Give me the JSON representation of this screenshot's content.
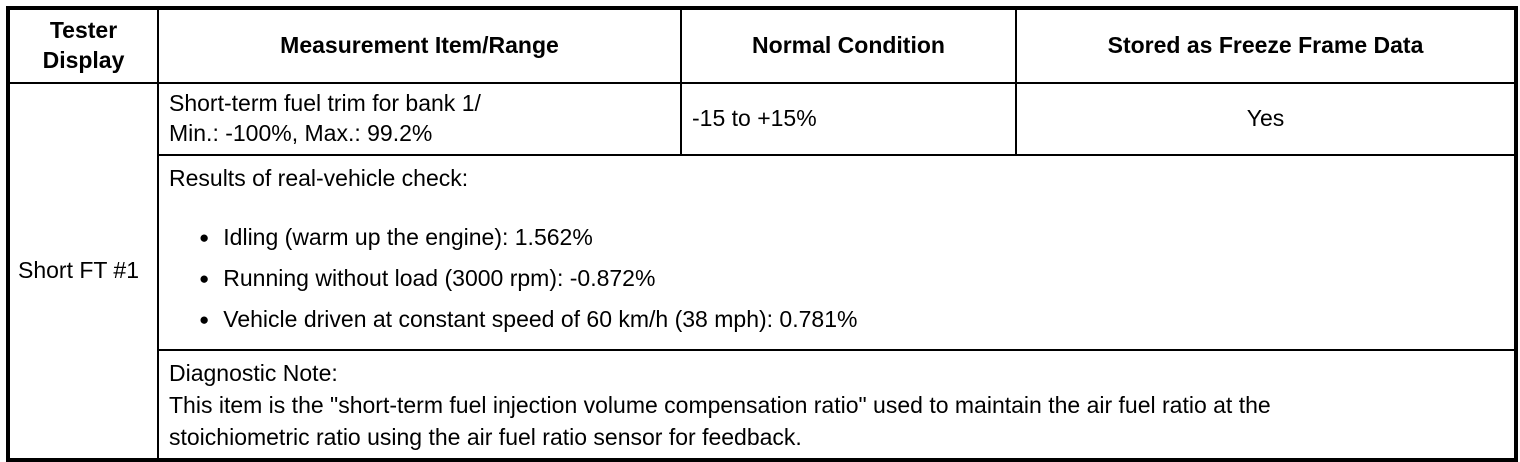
{
  "table": {
    "headers": [
      "Tester Display",
      "Measurement Item/Range",
      "Normal Condition",
      "Stored as Freeze Frame Data"
    ],
    "tester_display": "Short FT #1",
    "row_main": {
      "measurement_line1": "Short-term fuel trim for bank 1/",
      "measurement_line2": "Min.: -100%, Max.: 99.2%",
      "normal_condition": "-15 to +15%",
      "freeze_frame": "Yes"
    },
    "results": {
      "title": "Results of real-vehicle check:",
      "bullet_glyph": "●",
      "bullets": [
        "Idling (warm up the engine): 1.562%",
        "Running without load (3000 rpm): -0.872%",
        "Vehicle driven at constant speed of 60 km/h (38 mph): 0.781%"
      ]
    },
    "diagnostic": {
      "title": "Diagnostic Note:",
      "body_line1": "This item is the \"short-term fuel injection volume compensation ratio\" used to maintain the air fuel ratio at the",
      "body_line2": "stoichiometric ratio using the air fuel ratio sensor for feedback."
    }
  }
}
